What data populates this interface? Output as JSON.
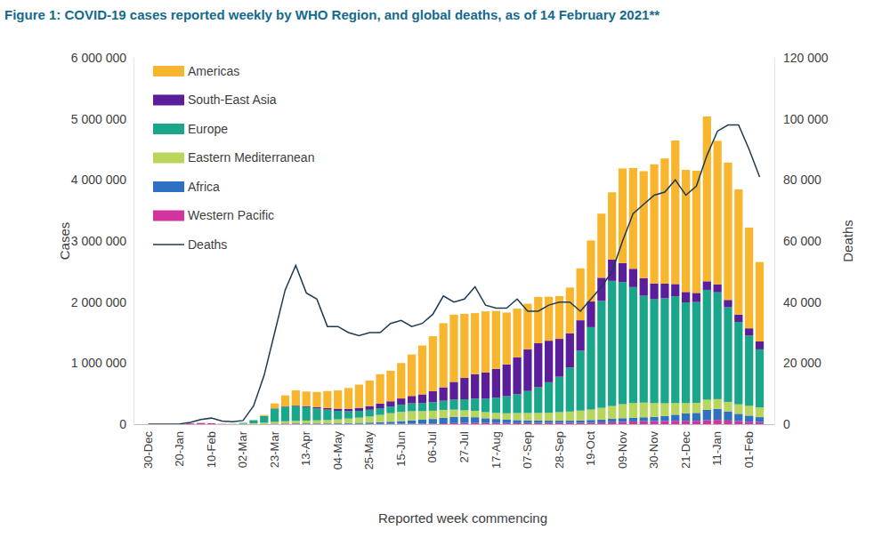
{
  "chart_data": {
    "type": "bar",
    "title": "Figure 1: COVID-19 cases reported weekly by WHO Region, and global deaths, as of 14 February 2021**",
    "x_label": "Reported week commencing",
    "y_label": "Cases",
    "y2_label": "Deaths",
    "stacked": true,
    "grid": false,
    "legend": "top-left",
    "categories": [
      "30-Dec",
      null,
      null,
      "20-Jan",
      null,
      null,
      "10-Feb",
      null,
      null,
      "02-Mar",
      null,
      null,
      "23-Mar",
      null,
      null,
      "13-Apr",
      null,
      null,
      "04-May",
      null,
      null,
      "25-May",
      null,
      null,
      "15-Jun",
      null,
      null,
      "06-Jul",
      null,
      null,
      "27-Jul",
      null,
      null,
      "17-Aug",
      null,
      null,
      "07-Sep",
      null,
      null,
      "28-Sep",
      null,
      null,
      "19-Oct",
      null,
      null,
      "09-Nov",
      null,
      null,
      "30-Nov",
      null,
      null,
      "21-Dec",
      null,
      null,
      "11-Jan",
      null,
      null,
      "01-Feb",
      null
    ],
    "ylim": [
      0,
      6000000
    ],
    "yticks": [
      0,
      {
        "value": 1000000,
        "label": "1 000 000"
      },
      {
        "value": 2000000,
        "label": "2 000 000"
      },
      {
        "value": 3000000,
        "label": "3 000 000"
      },
      {
        "value": 4000000,
        "label": "4 000 000"
      },
      {
        "value": 5000000,
        "label": "5 000 000"
      },
      {
        "value": 6000000,
        "label": "6 000 000"
      }
    ],
    "y2lim": [
      0,
      120000
    ],
    "y2ticks": [
      0,
      {
        "value": 20000,
        "label": "20 000"
      },
      {
        "value": 40000,
        "label": "40 000"
      },
      {
        "value": 60000,
        "label": "60 000"
      },
      {
        "value": 80000,
        "label": "80 000"
      },
      {
        "value": 100000,
        "label": "100 000"
      },
      {
        "value": 120000,
        "label": "120 000"
      }
    ],
    "series": [
      {
        "name": "Americas",
        "type": "bar",
        "color": "#f8b52e",
        "values": [
          0,
          0,
          0,
          0,
          0,
          0,
          0,
          0,
          0,
          2000,
          3000,
          15000,
          80000,
          180000,
          250000,
          240000,
          250000,
          280000,
          300000,
          340000,
          380000,
          420000,
          480000,
          500000,
          580000,
          680000,
          800000,
          900000,
          1050000,
          1100000,
          1050000,
          1000000,
          1000000,
          950000,
          850000,
          800000,
          750000,
          760000,
          720000,
          700000,
          750000,
          850000,
          1000000,
          1050000,
          1100000,
          1550000,
          1650000,
          1750000,
          1950000,
          2050000,
          2350000,
          2000000,
          2000000,
          2700000,
          2350000,
          2250000,
          2050000,
          1650000,
          1300000
        ]
      },
      {
        "name": "South-East Asia",
        "type": "bar",
        "color": "#5a1e9a",
        "values": [
          0,
          0,
          0,
          0,
          0,
          0,
          0,
          0,
          0,
          0,
          100,
          500,
          2000,
          5000,
          10000,
          15000,
          20000,
          25000,
          35000,
          40000,
          50000,
          60000,
          75000,
          85000,
          100000,
          120000,
          140000,
          180000,
          220000,
          290000,
          350000,
          400000,
          430000,
          470000,
          520000,
          600000,
          680000,
          720000,
          680000,
          620000,
          560000,
          500000,
          420000,
          380000,
          350000,
          310000,
          300000,
          290000,
          260000,
          240000,
          200000,
          170000,
          150000,
          140000,
          130000,
          120000,
          120000,
          120000,
          130000
        ]
      },
      {
        "name": "Europe",
        "type": "bar",
        "color": "#1aa68a",
        "values": [
          0,
          0,
          0,
          0,
          0,
          0,
          0,
          0,
          2000,
          15000,
          50000,
          110000,
          220000,
          240000,
          240000,
          220000,
          195000,
          170000,
          140000,
          120000,
          110000,
          110000,
          110000,
          110000,
          120000,
          130000,
          135000,
          140000,
          150000,
          165000,
          180000,
          200000,
          220000,
          250000,
          280000,
          310000,
          360000,
          420000,
          500000,
          580000,
          720000,
          980000,
          1350000,
          1750000,
          2050000,
          2000000,
          1900000,
          1750000,
          1700000,
          1720000,
          1750000,
          1650000,
          1650000,
          1800000,
          1750000,
          1550000,
          1350000,
          1150000,
          950000
        ]
      },
      {
        "name": "Eastern Mediterranean",
        "type": "bar",
        "color": "#b8d65c",
        "values": [
          0,
          0,
          0,
          0,
          0,
          0,
          0,
          0,
          2000,
          5000,
          12000,
          20000,
          28000,
          35000,
          40000,
          45000,
          50000,
          55000,
          65000,
          75000,
          85000,
          100000,
          120000,
          140000,
          150000,
          150000,
          140000,
          135000,
          130000,
          120000,
          110000,
          105000,
          100000,
          100000,
          105000,
          115000,
          120000,
          125000,
          130000,
          140000,
          150000,
          160000,
          170000,
          190000,
          210000,
          230000,
          240000,
          240000,
          225000,
          210000,
          190000,
          170000,
          165000,
          165000,
          160000,
          155000,
          155000,
          160000,
          160000
        ]
      },
      {
        "name": "Africa",
        "type": "bar",
        "color": "#2e70c2",
        "values": [
          0,
          0,
          0,
          0,
          0,
          0,
          0,
          0,
          0,
          100,
          300,
          1000,
          2500,
          4000,
          5000,
          6000,
          7000,
          8000,
          10000,
          13000,
          18000,
          22000,
          28000,
          35000,
          45000,
          55000,
          65000,
          75000,
          90000,
          100000,
          95000,
          90000,
          75000,
          65000,
          55000,
          50000,
          45000,
          40000,
          35000,
          35000,
          35000,
          40000,
          45000,
          50000,
          55000,
          60000,
          60000,
          65000,
          70000,
          80000,
          100000,
          120000,
          130000,
          170000,
          180000,
          150000,
          120000,
          100000,
          80000
        ]
      },
      {
        "name": "Western Pacific",
        "type": "bar",
        "color": "#d2339c",
        "values": [
          0,
          0,
          100,
          2000,
          12000,
          20000,
          15000,
          5000,
          2000,
          1500,
          3000,
          5000,
          7000,
          8000,
          9000,
          8000,
          6000,
          5000,
          4000,
          4000,
          4000,
          4000,
          4000,
          5000,
          6000,
          7000,
          8000,
          10000,
          14000,
          18000,
          22000,
          24000,
          22000,
          20000,
          18000,
          17000,
          18000,
          20000,
          22000,
          22000,
          22000,
          22000,
          24000,
          28000,
          32000,
          38000,
          45000,
          48000,
          50000,
          52000,
          55000,
          55000,
          55000,
          65000,
          70000,
          60000,
          50000,
          40000,
          35000
        ]
      },
      {
        "name": "Deaths",
        "type": "line",
        "axis": "y2",
        "color": "#1f3a50",
        "values": [
          0,
          0,
          10,
          100,
          600,
          1500,
          2000,
          1000,
          800,
          1200,
          6000,
          16000,
          30000,
          44000,
          52000,
          43000,
          41000,
          32000,
          32000,
          30000,
          29000,
          30000,
          30000,
          33000,
          34000,
          32000,
          33000,
          36000,
          42000,
          40000,
          41000,
          45000,
          39000,
          38000,
          38000,
          41000,
          37000,
          37000,
          39000,
          40000,
          40000,
          37000,
          41000,
          45000,
          50000,
          60000,
          69000,
          72000,
          75000,
          76000,
          80000,
          75000,
          78000,
          88000,
          96000,
          98000,
          98000,
          90000,
          81000
        ]
      }
    ]
  }
}
